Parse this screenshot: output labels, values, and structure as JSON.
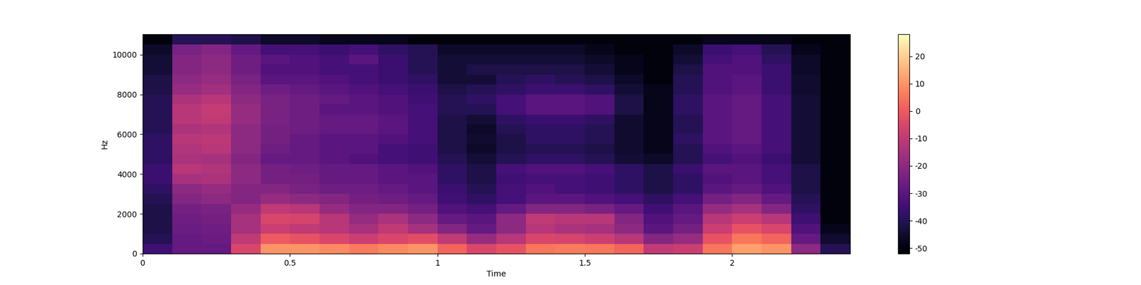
{
  "chart_data": {
    "type": "heatmap",
    "x_label": "Time",
    "y_label": "Hz",
    "xlim": [
      0,
      2.4
    ],
    "xticks": [
      0,
      0.5,
      1,
      1.5,
      2
    ],
    "ylim": [
      0,
      11025
    ],
    "yticks": [
      0,
      2000,
      4000,
      6000,
      8000,
      10000
    ],
    "x_edges": [
      0,
      0.1,
      0.2,
      0.3,
      0.4,
      0.5,
      0.6,
      0.7,
      0.8,
      0.9,
      1.0,
      1.1,
      1.2,
      1.3,
      1.4,
      1.5,
      1.6,
      1.7,
      1.8,
      1.9,
      2.0,
      2.1,
      2.2,
      2.3,
      2.4
    ],
    "y_edges": [
      0,
      500,
      1000,
      1500,
      2000,
      2500,
      3000,
      3500,
      4000,
      4500,
      5000,
      5500,
      6000,
      6500,
      7000,
      7500,
      8000,
      8500,
      9000,
      9500,
      10000,
      10500,
      11025
    ],
    "cells": [
      [
        -35,
        -28,
        -28,
        -5,
        10,
        10,
        8,
        6,
        8,
        10,
        2,
        -5,
        -2,
        5,
        6,
        5,
        2,
        -10,
        -8,
        5,
        12,
        10,
        -20,
        -40
      ],
      [
        -40,
        -28,
        -27,
        -10,
        0,
        -2,
        -5,
        -8,
        -5,
        -3,
        -10,
        -18,
        -12,
        -5,
        -6,
        -8,
        -12,
        -22,
        -18,
        -2,
        5,
        2,
        -28,
        -45
      ],
      [
        -42,
        -27,
        -26,
        -15,
        -8,
        -10,
        -12,
        -15,
        -10,
        -15,
        -22,
        -28,
        -20,
        -12,
        -14,
        -15,
        -20,
        -30,
        -25,
        -8,
        -2,
        -5,
        -32,
        -48
      ],
      [
        -42,
        -26,
        -25,
        -15,
        -5,
        -6,
        -12,
        -18,
        -14,
        -20,
        -28,
        -30,
        -20,
        -10,
        -12,
        -12,
        -22,
        -32,
        -28,
        -12,
        -8,
        -12,
        -35,
        -50
      ],
      [
        -42,
        -25,
        -24,
        -18,
        -10,
        -12,
        -18,
        -22,
        -22,
        -25,
        -32,
        -34,
        -28,
        -22,
        -22,
        -24,
        -28,
        -35,
        -30,
        -18,
        -15,
        -22,
        -38,
        -50
      ],
      [
        -40,
        -22,
        -20,
        -22,
        -18,
        -20,
        -22,
        -25,
        -26,
        -28,
        -35,
        -38,
        -34,
        -30,
        -30,
        -32,
        -34,
        -38,
        -34,
        -25,
        -22,
        -28,
        -40,
        -50
      ],
      [
        -38,
        -20,
        -18,
        -22,
        -22,
        -24,
        -26,
        -26,
        -28,
        -30,
        -36,
        -40,
        -34,
        -32,
        -34,
        -35,
        -38,
        -42,
        -38,
        -30,
        -28,
        -32,
        -42,
        -50
      ],
      [
        -36,
        -15,
        -14,
        -20,
        -25,
        -25,
        -28,
        -28,
        -30,
        -30,
        -38,
        -42,
        -35,
        -34,
        -34,
        -35,
        -38,
        -42,
        -38,
        -32,
        -30,
        -34,
        -42,
        -50
      ],
      [
        -36,
        -12,
        -13,
        -20,
        -25,
        -26,
        -28,
        -28,
        -30,
        -32,
        -38,
        -42,
        -34,
        -32,
        -32,
        -34,
        -38,
        -42,
        -36,
        -30,
        -30,
        -34,
        -42,
        -50
      ],
      [
        -38,
        -14,
        -15,
        -22,
        -28,
        -28,
        -30,
        -32,
        -34,
        -35,
        -40,
        -44,
        -40,
        -38,
        -38,
        -40,
        -44,
        -46,
        -40,
        -34,
        -32,
        -36,
        -44,
        -50
      ],
      [
        -38,
        -13,
        -12,
        -20,
        -26,
        -28,
        -30,
        -30,
        -34,
        -35,
        -42,
        -46,
        -42,
        -40,
        -40,
        -42,
        -45,
        -48,
        -40,
        -32,
        -30,
        -34,
        -44,
        -50
      ],
      [
        -38,
        -12,
        -11,
        -20,
        -25,
        -28,
        -30,
        -30,
        -32,
        -34,
        -42,
        -45,
        -42,
        -38,
        -38,
        -40,
        -45,
        -48,
        -38,
        -30,
        -28,
        -34,
        -44,
        -50
      ],
      [
        -40,
        -14,
        -13,
        -20,
        -25,
        -26,
        -28,
        -28,
        -30,
        -34,
        -42,
        -46,
        -40,
        -38,
        -38,
        -40,
        -45,
        -48,
        -40,
        -30,
        -28,
        -34,
        -44,
        -50
      ],
      [
        -40,
        -12,
        -10,
        -18,
        -24,
        -26,
        -28,
        -28,
        -30,
        -34,
        -42,
        -44,
        -38,
        -36,
        -36,
        -38,
        -45,
        -48,
        -40,
        -30,
        -28,
        -34,
        -44,
        -50
      ],
      [
        -40,
        -12,
        -9,
        -18,
        -24,
        -26,
        -30,
        -30,
        -32,
        -34,
        -40,
        -40,
        -34,
        -30,
        -30,
        -32,
        -42,
        -48,
        -38,
        -30,
        -28,
        -34,
        -44,
        -50
      ],
      [
        -40,
        -14,
        -12,
        -20,
        -24,
        -26,
        -28,
        -30,
        -32,
        -35,
        -40,
        -38,
        -34,
        -30,
        -30,
        -32,
        -42,
        -48,
        -38,
        -30,
        -28,
        -34,
        -44,
        -50
      ],
      [
        -42,
        -18,
        -16,
        -22,
        -26,
        -28,
        -30,
        -32,
        -34,
        -36,
        -42,
        -40,
        -38,
        -36,
        -36,
        -38,
        -44,
        -48,
        -40,
        -32,
        -30,
        -36,
        -45,
        -50
      ],
      [
        -42,
        -20,
        -18,
        -24,
        -30,
        -30,
        -32,
        -34,
        -36,
        -38,
        -44,
        -44,
        -40,
        -38,
        -40,
        -42,
        -46,
        -50,
        -40,
        -32,
        -30,
        -36,
        -45,
        -50
      ],
      [
        -44,
        -22,
        -20,
        -26,
        -32,
        -32,
        -34,
        -34,
        -36,
        -40,
        -44,
        -42,
        -42,
        -42,
        -42,
        -44,
        -48,
        -50,
        -42,
        -32,
        -32,
        -36,
        -46,
        -50
      ],
      [
        -44,
        -22,
        -20,
        -26,
        -30,
        -32,
        -34,
        -30,
        -36,
        -40,
        -44,
        -44,
        -44,
        -44,
        -44,
        -46,
        -48,
        -50,
        -44,
        -34,
        -32,
        -38,
        -46,
        -50
      ],
      [
        -46,
        -24,
        -22,
        -28,
        -34,
        -34,
        -36,
        -34,
        -38,
        -40,
        -46,
        -46,
        -46,
        -46,
        -46,
        -48,
        -50,
        -50,
        -46,
        -36,
        -34,
        -40,
        -48,
        -50
      ],
      [
        -50,
        -40,
        -40,
        -42,
        -46,
        -46,
        -48,
        -48,
        -48,
        -50,
        -50,
        -50,
        -50,
        -50,
        -50,
        -50,
        -50,
        -50,
        -50,
        -48,
        -48,
        -48,
        -50,
        -50
      ]
    ],
    "colorbar_range": [
      -52,
      28
    ],
    "colorbar_ticks": [
      20,
      10,
      0,
      -10,
      -20,
      -30,
      -40,
      -50
    ]
  }
}
